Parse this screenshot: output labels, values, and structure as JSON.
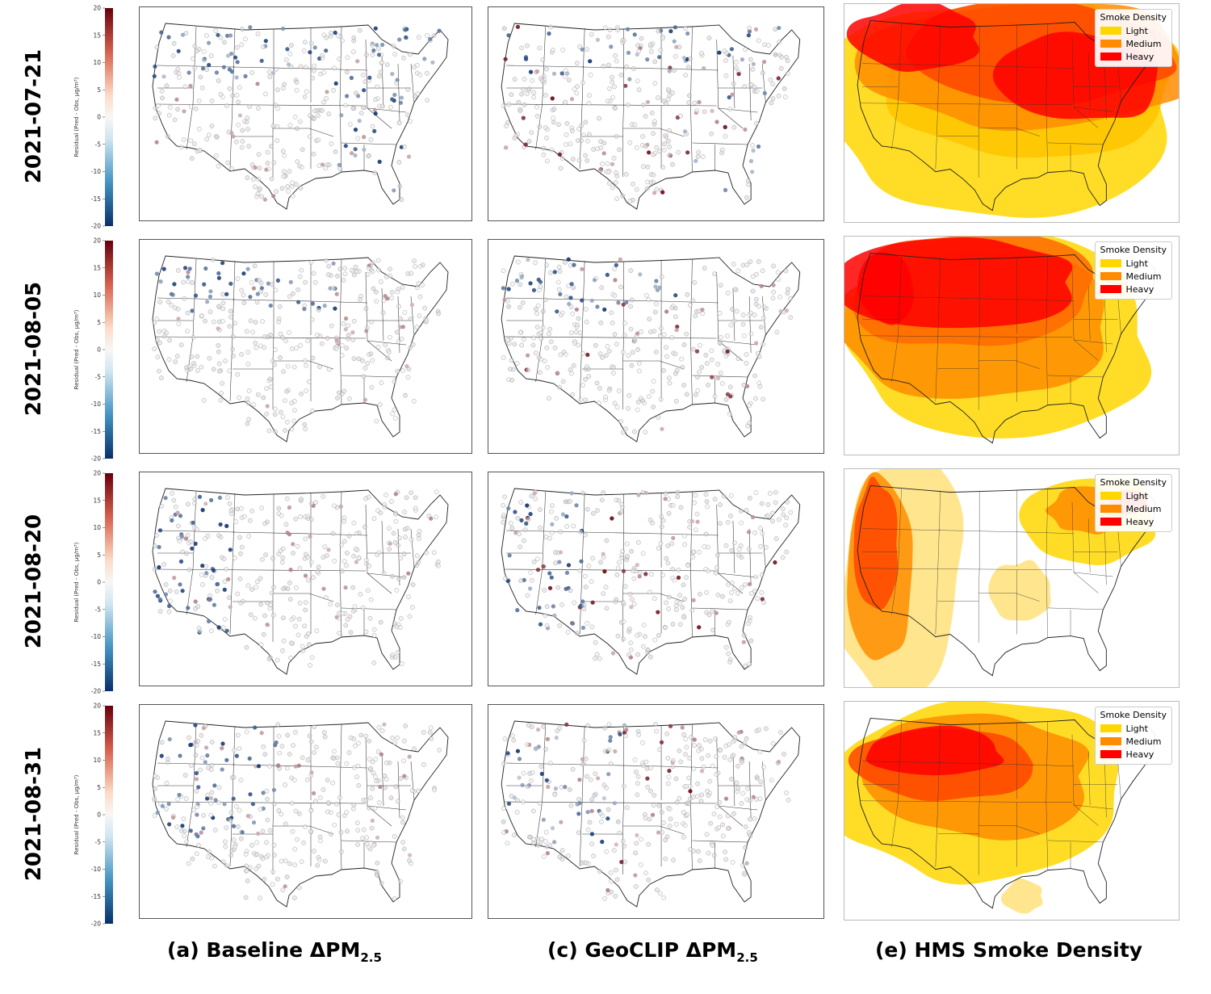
{
  "colorbar": {
    "label": "Residual (Pred - Obs, μg/m³)",
    "ticks": [
      "20",
      "15",
      "10",
      "5",
      "0",
      "-5",
      "-10",
      "-15",
      "-20"
    ]
  },
  "rows": [
    {
      "date": "2021-07-21"
    },
    {
      "date": "2021-08-05"
    },
    {
      "date": "2021-08-20"
    },
    {
      "date": "2021-08-31"
    }
  ],
  "legend": {
    "title": "Smoke Density",
    "items": [
      {
        "label": "Light",
        "color": "#ffd700"
      },
      {
        "label": "Medium",
        "color": "#ff8c00"
      },
      {
        "label": "Heavy",
        "color": "#ff0000"
      }
    ]
  },
  "captions": {
    "a_prefix": "(a) Baseline ΔPM",
    "c_prefix": "(c) GeoCLIP ΔPM",
    "sub": "2.5",
    "e": "(e) HMS Smoke Density"
  },
  "colors": {
    "diverging_low": "#08306b",
    "diverging_mid": "#f7f7f7",
    "diverging_high": "#67000d",
    "smoke_light": "#ffd700",
    "smoke_medium": "#ff8c00",
    "smoke_heavy": "#ff0000"
  }
}
